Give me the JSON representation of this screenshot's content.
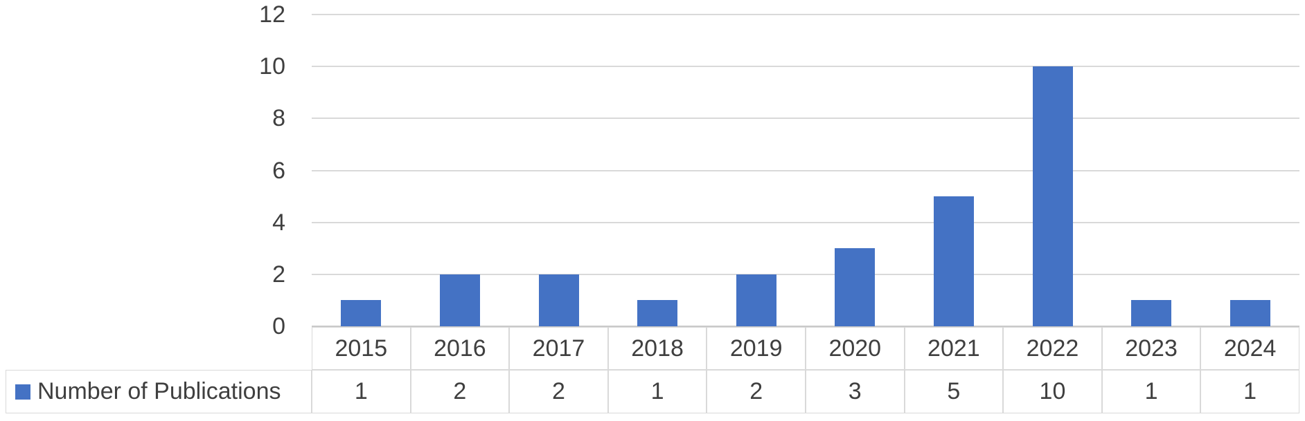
{
  "chart_data": {
    "type": "bar",
    "title": "",
    "xlabel": "",
    "ylabel": "",
    "categories": [
      "2015",
      "2016",
      "2017",
      "2018",
      "2019",
      "2020",
      "2021",
      "2022",
      "2023",
      "2024"
    ],
    "series": [
      {
        "name": "Number of Publications",
        "values": [
          1,
          2,
          2,
          1,
          2,
          3,
          5,
          10,
          1,
          1
        ]
      }
    ],
    "ylim": [
      0,
      12
    ],
    "yticks": [
      0,
      2,
      4,
      6,
      8,
      10,
      12
    ],
    "grid": true,
    "data_table_shown": true,
    "legend_position": "data-table-left"
  },
  "legend": {
    "label": "Number of Publications"
  },
  "colors": {
    "bar_fill": "#4472c4",
    "gridline": "#d9d9d9",
    "axis_line": "#c9c9c9",
    "table_border": "#d9d9d9",
    "text": "#3f3f3f",
    "background": "#ffffff"
  }
}
